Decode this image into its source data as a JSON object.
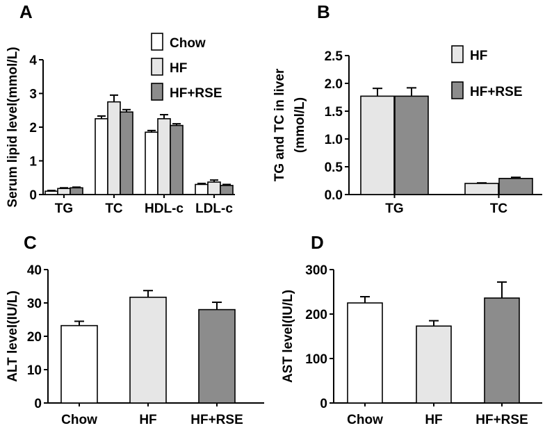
{
  "colors": {
    "Chow": "#ffffff",
    "HF": "#e6e6e6",
    "HF+RSE": "#8c8c8c",
    "axis": "#000000"
  },
  "chart_data": [
    {
      "panel": "A",
      "type": "bar",
      "ylabel": "Serum lipid level(mmol/L)",
      "ylim": [
        0,
        4
      ],
      "yticks": [
        "0",
        "1",
        "2",
        "3",
        "4"
      ],
      "categories": [
        "TG",
        "TC",
        "HDL-c",
        "LDL-c"
      ],
      "series": [
        {
          "name": "Chow",
          "values": [
            0.1,
            2.25,
            1.85,
            0.3
          ],
          "errors": [
            0.02,
            0.08,
            0.05,
            0.03
          ]
        },
        {
          "name": "HF",
          "values": [
            0.18,
            2.75,
            2.25,
            0.37
          ],
          "errors": [
            0.02,
            0.2,
            0.12,
            0.06
          ]
        },
        {
          "name": "HF+RSE",
          "values": [
            0.2,
            2.45,
            2.05,
            0.27
          ],
          "errors": [
            0.02,
            0.07,
            0.05,
            0.03
          ]
        }
      ],
      "legend": "top-right"
    },
    {
      "panel": "B",
      "type": "bar",
      "ylabel": "TG and TC in liver (mmol/L)",
      "ylabel_lines": [
        "TG and TC in liver",
        "(mmol/L)"
      ],
      "ylim": [
        0,
        2.5
      ],
      "yticks": [
        "0.0",
        "0.5",
        "1.0",
        "1.5",
        "2.0",
        "2.5"
      ],
      "categories": [
        "TG",
        "TC"
      ],
      "series": [
        {
          "name": "HF",
          "values": [
            1.77,
            0.2
          ],
          "errors": [
            0.14,
            0.01
          ]
        },
        {
          "name": "HF+RSE",
          "values": [
            1.77,
            0.29
          ],
          "errors": [
            0.15,
            0.02
          ]
        }
      ],
      "legend": "top-right"
    },
    {
      "panel": "C",
      "type": "bar",
      "ylabel": "ALT level(IU/L)",
      "ylim": [
        0,
        40
      ],
      "yticks": [
        "0",
        "10",
        "20",
        "30",
        "40"
      ],
      "categories": [
        "Chow",
        "HF",
        "HF+RSE"
      ],
      "values": [
        23.2,
        31.7,
        28.0
      ],
      "errors": [
        1.3,
        2.0,
        2.2
      ]
    },
    {
      "panel": "D",
      "type": "bar",
      "ylabel": "AST level(IU/L)",
      "ylim": [
        0,
        300
      ],
      "yticks": [
        "0",
        "100",
        "200",
        "300"
      ],
      "categories": [
        "Chow",
        "HF",
        "HF+RSE"
      ],
      "values": [
        225,
        173,
        236
      ],
      "errors": [
        14,
        12,
        36
      ]
    }
  ]
}
